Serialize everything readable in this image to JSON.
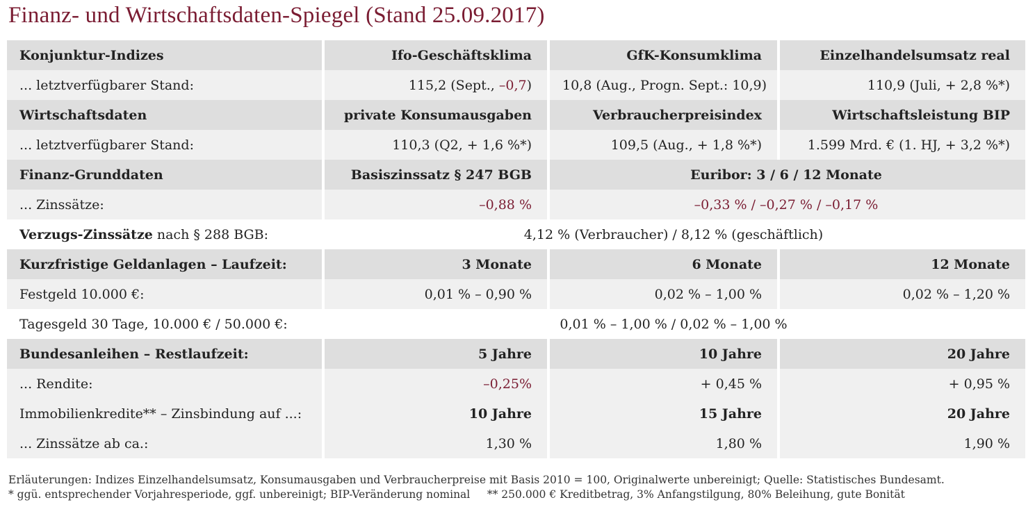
{
  "title": "Finanz- und Wirtschaftsdaten-Spiegel (Stand 25.09.2017)",
  "konjunktur": {
    "label": "Konjunktur-Indizes",
    "headers": [
      "Ifo-Geschäftsklima",
      "GfK-Konsumklima",
      "Einzelhandelsumsatz real"
    ],
    "row_label": "... letztverfügbarer Stand:",
    "ifo_value": "115,2 (Sept., ",
    "ifo_change": "–0,7",
    "ifo_close": ")",
    "gfk_value": "10,8 (Aug., Progn. Sept.: 10,9)",
    "einzelhandel_value": "110,9 (Juli, + 2,8 %*)"
  },
  "wirtschaft": {
    "label": "Wirtschaftsdaten",
    "headers": [
      "private Konsumausgaben",
      "Verbraucherpreisindex",
      "Wirtschaftsleistung BIP"
    ],
    "row_label": "... letztverfügbarer Stand:",
    "values": [
      "110,3 (Q2, + 1,6 %*)",
      "109,5 (Aug., + 1,8 %*)",
      "1.599 Mrd. € (1. HJ, + 3,2 %*)"
    ]
  },
  "finanz": {
    "label": "Finanz-Grunddaten",
    "headers": [
      "Basiszinssatz § 247 BGB",
      "Euribor: 3 / 6 / 12 Monate"
    ],
    "row_label": "... Zinssätze:",
    "values": [
      "–0,88 %",
      "–0,33 % / –0,27 % / –0,17 %"
    ]
  },
  "verzug": {
    "label_bold": "Verzugs-Zinssätze",
    "label_rest": " nach § 288 BGB:",
    "value": "4,12 % (Verbraucher) / 8,12 % (geschäftlich)"
  },
  "geldanlagen": {
    "label": "Kurzfristige Geldanlagen – Laufzeit:",
    "headers": [
      "3 Monate",
      "6 Monate",
      "12 Monate"
    ],
    "festgeld_label": "Festgeld 10.000 €:",
    "festgeld_values": [
      "0,01 % – 0,90 %",
      "0,02 % – 1,00 %",
      "0,02 % – 1,20 %"
    ],
    "tagesgeld_label": "Tagesgeld 30 Tage, 10.000 € / 50.000 €:",
    "tagesgeld_value": "0,01 % – 1,00 % / 0,02 % – 1,00 %"
  },
  "bundesanleihen": {
    "label": "Bundesanleihen – Restlaufzeit:",
    "headers": [
      "5 Jahre",
      "10 Jahre",
      "20 Jahre"
    ],
    "row_label": "... Rendite:",
    "values": [
      "–0,25%",
      "+ 0,45 %",
      "+ 0,95 %"
    ]
  },
  "immobilien": {
    "label": "Immobilienkredite** – Zinsbindung auf ...:",
    "headers": [
      "10 Jahre",
      "15 Jahre",
      "20 Jahre"
    ],
    "row_label": "... Zinssätze ab ca.:",
    "values": [
      "1,30 %",
      "1,80 %",
      "1,90 %"
    ]
  },
  "notes": {
    "line1": "Erläuterungen: Indizes Einzelhandelsumsatz, Konsumausgaben und Verbraucherpreise mit Basis 2010 = 100, Originalwerte unbereinigt; Quelle: Statistisches Bundesamt.",
    "line2": "* ggü. entsprechender Vorjahresperiode, ggf. unbereinigt; BIP-Veränderung nominal     ** 250.000 € Kreditbetrag, 3% Anfangstilgung, 80% Beleihung, gute Bonität"
  },
  "colors": {
    "accent": "#7a1c32",
    "header_bg": "#dedede",
    "row_bg": "#f0f0f0"
  }
}
